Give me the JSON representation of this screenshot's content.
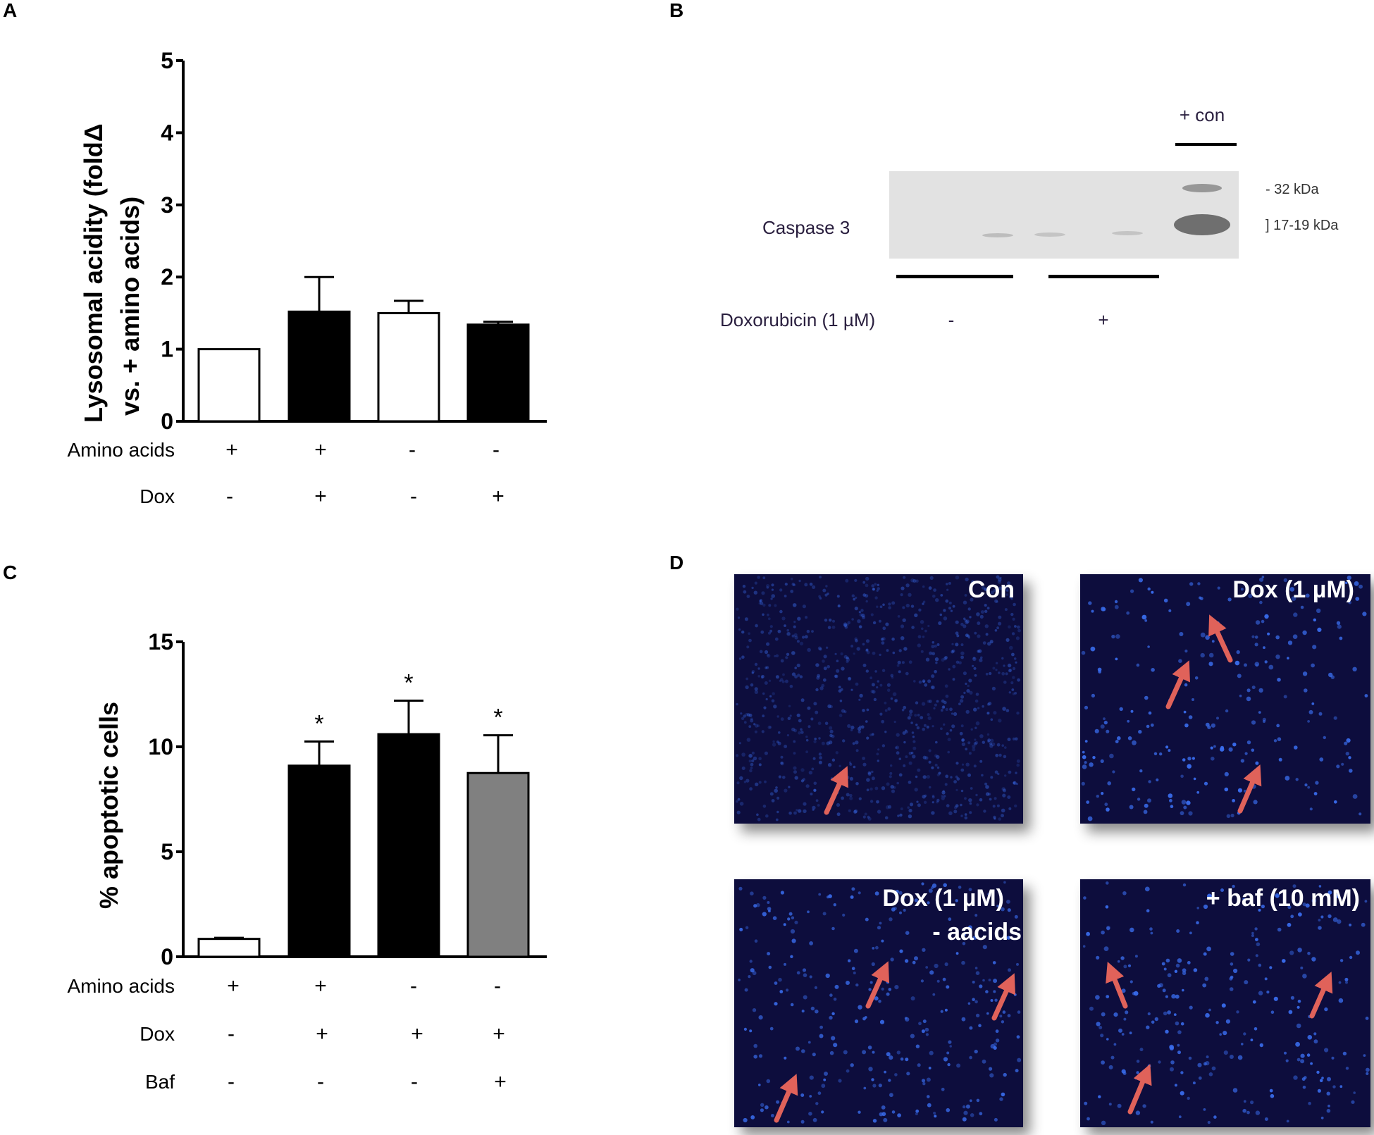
{
  "panels": {
    "a": "A",
    "b": "B",
    "c": "C",
    "d": "D"
  },
  "chart_data": [
    {
      "type": "bar",
      "panel": "A",
      "ylabel_line1": "Lysosomal acidity (foldΔ",
      "ylabel_line2": "vs. + amino acids)",
      "ylim": [
        0,
        5
      ],
      "yticks": [
        "0",
        "1",
        "2",
        "3",
        "4",
        "5"
      ],
      "values": [
        1.0,
        1.52,
        1.5,
        1.34
      ],
      "errors": [
        0.0,
        0.48,
        0.17,
        0.04
      ],
      "bar_colors": [
        "#ffffff",
        "#000000",
        "#ffffff",
        "#000000"
      ],
      "significance": [
        "",
        "",
        "",
        ""
      ],
      "conditions": [
        {
          "label": "Amino acids",
          "values": [
            "+",
            "+",
            "-",
            "-"
          ]
        },
        {
          "label": "Dox",
          "values": [
            "-",
            "+",
            "-",
            "+"
          ]
        }
      ]
    },
    {
      "type": "bar",
      "panel": "C",
      "ylabel": "% apoptotic cells",
      "ylim": [
        0,
        15
      ],
      "yticks": [
        "0",
        "5",
        "10",
        "15"
      ],
      "values": [
        0.85,
        9.1,
        10.6,
        8.75
      ],
      "errors": [
        0.05,
        1.15,
        1.6,
        1.8
      ],
      "bar_colors": [
        "#ffffff",
        "#000000",
        "#000000",
        "#808080"
      ],
      "significance": [
        "",
        "*",
        "*",
        "*"
      ],
      "conditions": [
        {
          "label": "Amino acids",
          "values": [
            "+",
            "+",
            "-",
            "-"
          ]
        },
        {
          "label": "Dox",
          "values": [
            "-",
            "+",
            "+",
            "+"
          ]
        },
        {
          "label": "Baf",
          "values": [
            "-",
            "-",
            "-",
            "+"
          ]
        }
      ]
    }
  ],
  "western_blot": {
    "protein": "Caspase 3",
    "control_label": "+ con",
    "marker_high": "- 32 kDa",
    "marker_low": "] 17-19 kDa",
    "treatment": "Doxorubicin (1 µM)",
    "treatment_minus": "-",
    "treatment_plus": "+"
  },
  "micrographs": {
    "con": "Con",
    "dox": "Dox (1 µM)",
    "dox_aa_line1": "Dox (1 µM)",
    "dox_aa_line2": "- aacids",
    "baf": "+ baf (10 mM)"
  },
  "colors": {
    "micrograph_bg": "#0a0f3c",
    "nuclei": "#3a6ef0",
    "arrow": "#e0625a",
    "caspase_band": "#6f6f6f"
  }
}
